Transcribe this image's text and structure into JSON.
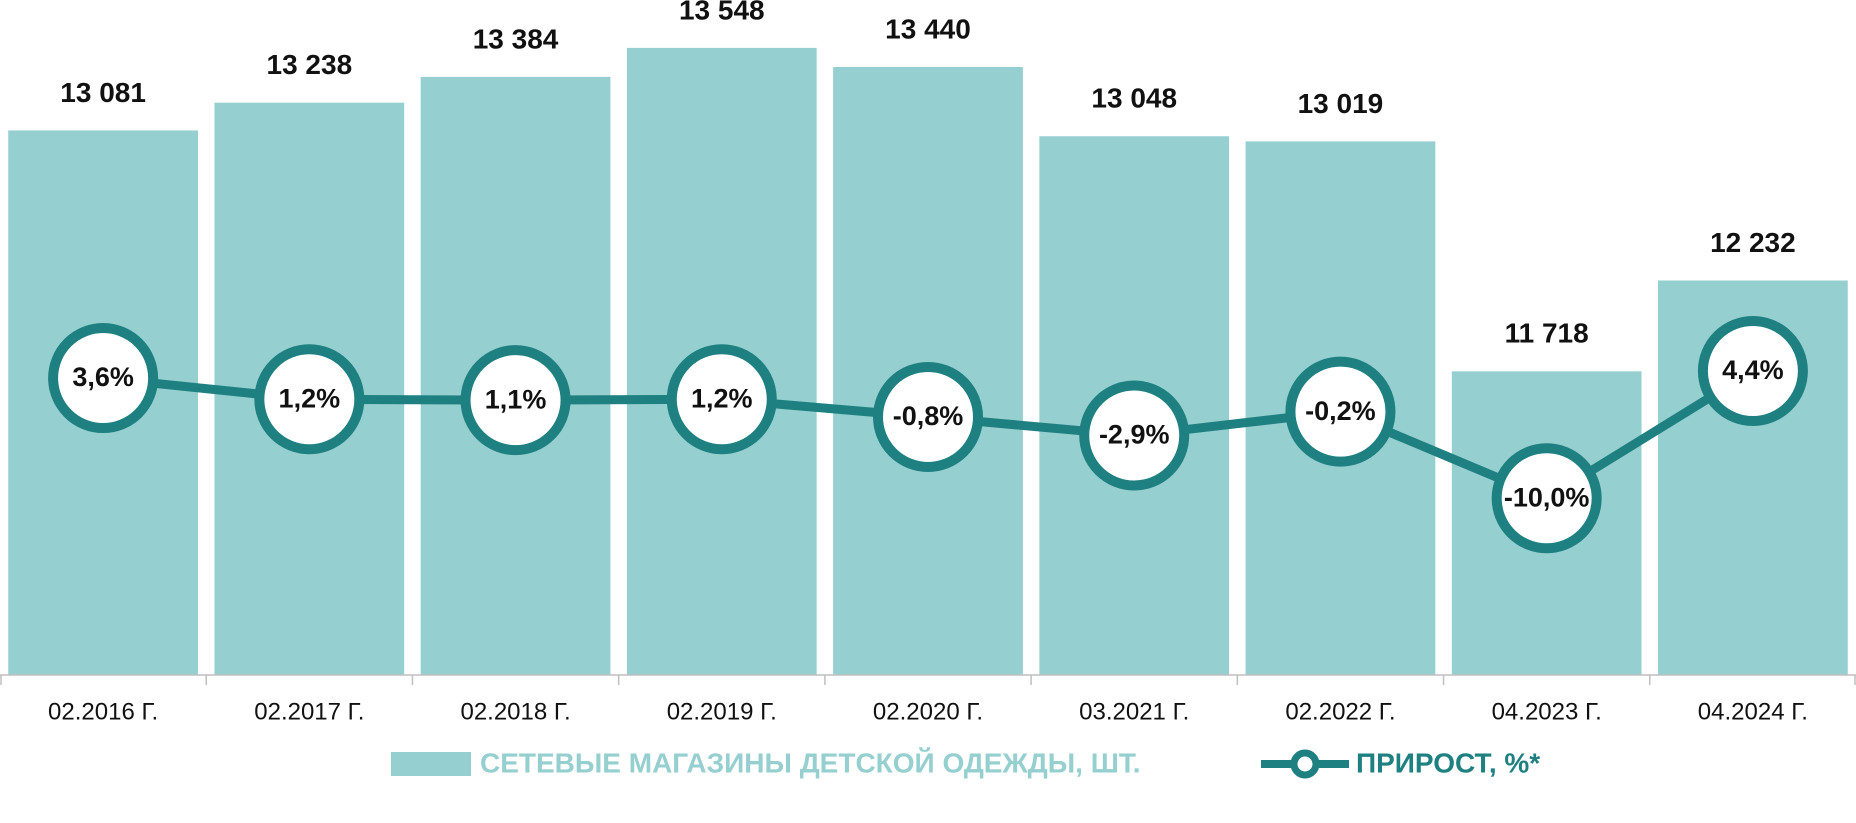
{
  "chart_data": {
    "type": "combo",
    "categories": [
      "02.2016 Г.",
      "02.2017 Г.",
      "02.2018 Г.",
      "02.2019 Г.",
      "02.2020 Г.",
      "03.2021 Г.",
      "02.2022 Г.",
      "04.2023 Г.",
      "04.2024 Г."
    ],
    "series": [
      {
        "name": "СЕТЕВЫЕ МАГАЗИНЫ ДЕТСКОЙ ОДЕЖДЫ, ШТ.",
        "type": "bar",
        "color": "#95cfcf",
        "values": [
          13081,
          13238,
          13384,
          13548,
          13440,
          13048,
          13019,
          11718,
          12232
        ],
        "value_labels": [
          "13 081",
          "13 238",
          "13 384",
          "13 548",
          "13 440",
          "13 048",
          "13 019",
          "11 718",
          "12 232"
        ]
      },
      {
        "name": "ПРИРОСТ, %*",
        "type": "line",
        "axis": "y2",
        "color": "#1e8080",
        "values": [
          3.6,
          1.2,
          1.1,
          1.2,
          -0.8,
          -2.9,
          -0.2,
          -10.0,
          4.4
        ],
        "value_labels": [
          "3,6%",
          "1,2%",
          "1,1%",
          "1,2%",
          "-0,8%",
          "-2,9%",
          "-0,2%",
          "-10,0%",
          "4,4%"
        ]
      }
    ],
    "ylim": [
      10000,
      14000
    ],
    "y2lim": [
      -30,
      50
    ]
  }
}
